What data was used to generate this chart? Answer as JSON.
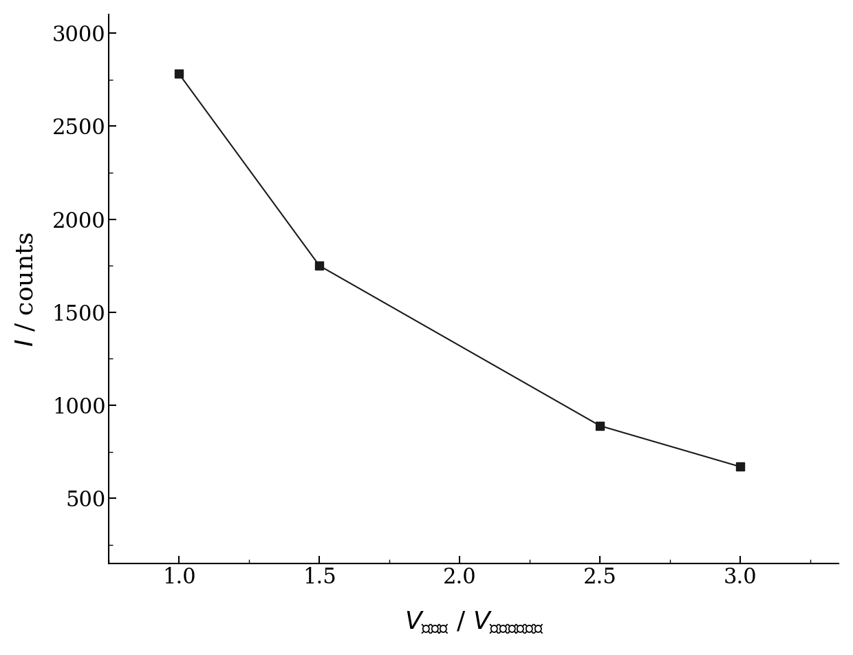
{
  "x": [
    1.0,
    1.5,
    2.5,
    3.0
  ],
  "y": [
    2780,
    1750,
    890,
    670
  ],
  "xlim": [
    0.75,
    3.35
  ],
  "ylim": [
    150,
    3100
  ],
  "xticks": [
    1.0,
    1.5,
    2.0,
    2.5,
    3.0
  ],
  "yticks": [
    500,
    1000,
    1500,
    2000,
    2500,
    3000
  ],
  "marker": "s",
  "marker_size": 9,
  "line_color": "#1a1a1a",
  "marker_color": "#1a1a1a",
  "background_color": "#ffffff",
  "tick_fontsize": 22,
  "label_fontsize": 26
}
